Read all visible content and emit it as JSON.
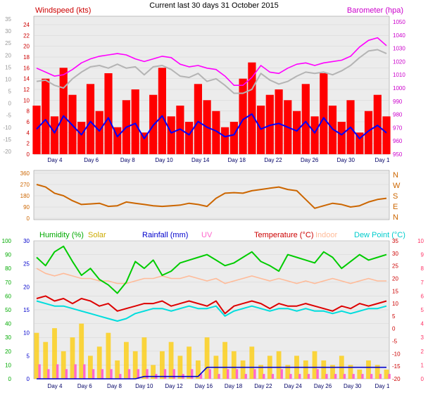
{
  "title": "Current last 30 days 31 October 2015",
  "colors": {
    "windspeed": "#ff0000",
    "wind_avg": "#0000ff",
    "barometer": "#ff00ff",
    "wind_gray": "#b4b4b4",
    "direction": "#cc6600",
    "humidity": "#00cc00",
    "solar": "#ffcc00",
    "rainfall": "#0000cc",
    "uv": "#ff66cc",
    "temperature": "#dd0000",
    "indoor": "#ffbb99",
    "dewpoint": "#00dddd",
    "rain_axis": "#0000cc",
    "temp_axis": "#ff3366"
  },
  "chart_data": [
    {
      "type": "line",
      "title": "Current last 30 days 31 October 2015",
      "left_label": "Windspeed (kts)",
      "right_label": "Barometer (hpa)",
      "x_ticks": [
        "Day 4",
        "Day 6",
        "Day 8",
        "Day 10",
        "Day 14",
        "Day 18",
        "Day 22",
        "Day 26",
        "Day 30",
        "Day 1"
      ],
      "left_axis_wind": {
        "ylim": [
          0,
          24
        ],
        "ticks": [
          "24",
          "22",
          "20",
          "18",
          "16",
          "14",
          "12",
          "10",
          "8",
          "6",
          "4",
          "2",
          "0"
        ]
      },
      "left_axis_outer": {
        "ylim": [
          -20,
          35
        ],
        "ticks": [
          "35",
          "30",
          "25",
          "20",
          "15",
          "10",
          "5",
          "0",
          "-5",
          "-10",
          "-15",
          "-20"
        ]
      },
      "right_axis": {
        "ylim": [
          950,
          1050
        ],
        "ticks": [
          "1050",
          "1040",
          "1030",
          "1020",
          "1010",
          "1000",
          "990",
          "980",
          "970",
          "960",
          "950"
        ]
      },
      "series": [
        {
          "name": "Windspeed (kts)",
          "values": [
            9,
            14,
            7,
            16,
            11,
            6,
            13,
            8,
            15,
            5,
            10,
            12,
            4,
            11,
            16,
            7,
            9,
            6,
            13,
            10,
            8,
            5,
            6,
            14,
            17,
            9,
            11,
            12,
            10,
            8,
            13,
            7,
            15,
            9,
            6,
            10,
            4,
            8,
            11,
            7
          ]
        },
        {
          "name": "Barometer (hpa)",
          "values": [
            1015,
            1012,
            1009,
            1010,
            1014,
            1019,
            1022,
            1024,
            1025,
            1026,
            1025,
            1022,
            1020,
            1022,
            1024,
            1023,
            1018,
            1016,
            1017,
            1015,
            1014,
            1009,
            1002,
            1002,
            1008,
            1017,
            1012,
            1011,
            1015,
            1018,
            1019,
            1017,
            1019,
            1020,
            1021,
            1024,
            1031,
            1036,
            1038,
            1032
          ]
        }
      ]
    },
    {
      "type": "line",
      "left_axis": {
        "ylim": [
          0,
          360
        ],
        "ticks": [
          "360",
          "270",
          "180",
          "90",
          "0"
        ]
      },
      "right_axis": {
        "ticks": [
          "N",
          "W",
          "S",
          "E",
          "N"
        ]
      },
      "series": [
        {
          "values": [
            270,
            250,
            200,
            180,
            140,
            110,
            115,
            120,
            95,
            100,
            130,
            120,
            110,
            100,
            95,
            100,
            105,
            120,
            110,
            95,
            160,
            200,
            205,
            200,
            220,
            230,
            240,
            250,
            230,
            220,
            150,
            80,
            100,
            120,
            110,
            90,
            100,
            130,
            150,
            160
          ]
        }
      ]
    },
    {
      "type": "line",
      "legend": [
        "Humidity (%)",
        "Solar",
        "Rainfall (mm)",
        "UV",
        "Temperature (°C)",
        "Indoor",
        "Dew Point (°C)"
      ],
      "x_ticks": [
        "Day 4",
        "Day 6",
        "Day 8",
        "Day 10",
        "Day 12",
        "Day 16",
        "Day 18",
        "Day 22",
        "Day 24",
        "Day 26",
        "Day 30",
        "Day 1"
      ],
      "humidity_axis": {
        "ylim": [
          0,
          100
        ],
        "ticks": [
          "100",
          "90",
          "80",
          "70",
          "60",
          "50",
          "40",
          "30",
          "20",
          "10",
          "0"
        ]
      },
      "rain_axis": {
        "ylim": [
          0,
          30
        ],
        "ticks": [
          "30",
          "25",
          "20",
          "15",
          "10",
          "5",
          "0"
        ]
      },
      "temp_axis": {
        "ylim": [
          -20,
          35
        ],
        "ticks": [
          "35",
          "30",
          "25",
          "20",
          "15",
          "10",
          "5",
          "0",
          "-5",
          "-10",
          "-15",
          "-20"
        ]
      },
      "uv_axis": {
        "ylim": [
          0,
          10
        ],
        "ticks": [
          "10",
          "9",
          "8",
          "7",
          "6",
          "5",
          "4",
          "3",
          "2",
          "1",
          "0"
        ]
      },
      "series": [
        {
          "name": "Humidity (%)",
          "axis": "humidity",
          "values": [
            88,
            82,
            92,
            96,
            85,
            75,
            80,
            72,
            68,
            62,
            70,
            85,
            80,
            86,
            75,
            78,
            84,
            86,
            88,
            90,
            86,
            82,
            84,
            88,
            92,
            85,
            82,
            78,
            90,
            88,
            86,
            84,
            92,
            88,
            80,
            85,
            90,
            86,
            88,
            90
          ]
        },
        {
          "name": "Temperature (°C)",
          "axis": "temperature",
          "values": [
            12,
            13,
            11,
            12,
            10,
            12,
            11,
            9,
            10,
            7,
            8,
            9,
            10,
            10,
            11,
            9,
            10,
            11,
            10,
            9,
            11,
            6,
            9,
            10,
            11,
            10,
            8,
            10,
            9,
            9,
            10,
            9,
            8,
            7,
            9,
            8,
            10,
            9,
            10,
            11
          ]
        },
        {
          "name": "Indoor",
          "axis": "temperature",
          "values": [
            24,
            22,
            21,
            22,
            21,
            20,
            20,
            19,
            19,
            18,
            18,
            19,
            20,
            20,
            21,
            20,
            20,
            21,
            20,
            19,
            20,
            18,
            19,
            20,
            21,
            20,
            19,
            20,
            19,
            18,
            19,
            18,
            19,
            20,
            19,
            18,
            19,
            20,
            19,
            19
          ]
        },
        {
          "name": "Dew Point (°C)",
          "axis": "temperature",
          "values": [
            11,
            10,
            9,
            9,
            8,
            7,
            6,
            5,
            4,
            3,
            4,
            6,
            7,
            8,
            8,
            7,
            8,
            9,
            8,
            8,
            9,
            5,
            7,
            8,
            9,
            8,
            7,
            8,
            8,
            7,
            8,
            7,
            7,
            6,
            7,
            6,
            7,
            8,
            8,
            9
          ]
        },
        {
          "name": "Rainfall (mm)",
          "axis": "rainfall",
          "values": [
            0,
            0,
            0,
            0,
            0,
            0,
            0,
            0,
            0,
            0,
            0,
            0,
            0.5,
            0.5,
            0.5,
            0.5,
            0.5,
            0.5,
            0.5,
            2.5,
            2.5,
            2.5,
            2.5,
            2.5,
            2.5,
            2.5,
            2.5,
            2.5,
            2.5,
            2.5,
            2.5,
            2.5,
            2.5,
            2.5,
            2.5,
            2.5,
            2.5,
            2.5,
            2.5,
            2.5
          ]
        },
        {
          "name": "Solar",
          "axis": "rainfall",
          "values": [
            10,
            8,
            11,
            6,
            9,
            12,
            5,
            7,
            10,
            4,
            8,
            6,
            9,
            3,
            6,
            8,
            5,
            7,
            4,
            9,
            5,
            8,
            6,
            4,
            7,
            3,
            5,
            6,
            3,
            5,
            4,
            6,
            4,
            3,
            5,
            3,
            2,
            4,
            3,
            2
          ]
        },
        {
          "name": "UV",
          "axis": "uv",
          "values": [
            3,
            2,
            3,
            2,
            3,
            3,
            2,
            2,
            2,
            1,
            2,
            2,
            2,
            1,
            2,
            2,
            1,
            2,
            1,
            2,
            1,
            2,
            2,
            1,
            2,
            1,
            1,
            2,
            1,
            1,
            1,
            2,
            1,
            1,
            1,
            1,
            1,
            1,
            1,
            1
          ]
        }
      ]
    }
  ]
}
